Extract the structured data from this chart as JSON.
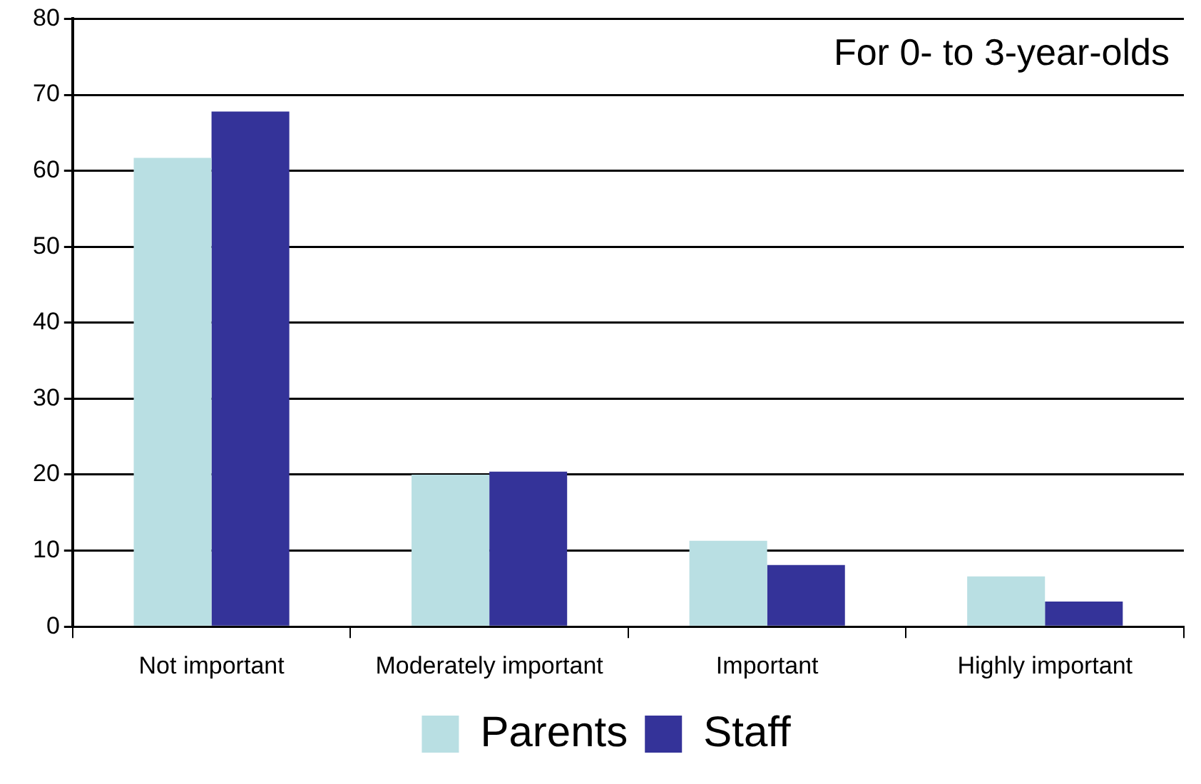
{
  "chart_data": {
    "type": "bar",
    "categories": [
      "Not important",
      "Moderately important",
      "Important",
      "Highly important"
    ],
    "series": [
      {
        "name": "Parents",
        "color": "#b9dfe3",
        "values": [
          61.7,
          20,
          11.3,
          6.6
        ]
      },
      {
        "name": "Staff",
        "color": "#343399",
        "values": [
          67.8,
          20.4,
          8.1,
          3.3
        ]
      }
    ],
    "ylim": [
      0,
      80
    ],
    "yticks": [
      0,
      10,
      20,
      30,
      40,
      50,
      60,
      70,
      80
    ],
    "grid": "y",
    "legend": "bottom",
    "annotations": [
      "For 0- to 3-year-olds"
    ]
  }
}
